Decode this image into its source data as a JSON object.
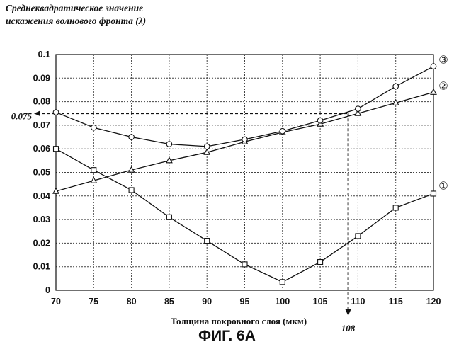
{
  "chart_data": {
    "type": "line",
    "title": "",
    "ylabel_line1": "Среднеквадратическое значение",
    "ylabel_line2": "искажения волнового фронта (λ)",
    "xlabel": "Толщина покровного слоя (мкм)",
    "caption": "ФИГ. 6А",
    "x": [
      70,
      75,
      80,
      85,
      90,
      95,
      100,
      105,
      110,
      115,
      120
    ],
    "xticks": [
      "70",
      "75",
      "80",
      "85",
      "90",
      "95",
      "100",
      "105",
      "110",
      "115",
      "120"
    ],
    "yticks": [
      "0",
      "0.01",
      "0.02",
      "0.03",
      "0.04",
      "0.05",
      "0.06",
      "0.07",
      "0.08",
      "0.09",
      "0.1"
    ],
    "xlim": [
      70,
      120
    ],
    "ylim": [
      0,
      0.1
    ],
    "grid": "dotted",
    "series": [
      {
        "label": "①",
        "marker": "square",
        "values": [
          0.06,
          0.051,
          0.0425,
          0.031,
          0.021,
          0.011,
          0.0035,
          0.012,
          0.023,
          0.035,
          0.041
        ]
      },
      {
        "label": "②",
        "marker": "triangle",
        "values": [
          0.042,
          0.0465,
          0.051,
          0.055,
          0.0585,
          0.063,
          0.067,
          0.0705,
          0.075,
          0.0795,
          0.084
        ]
      },
      {
        "label": "③",
        "marker": "circle",
        "values": [
          0.0755,
          0.069,
          0.065,
          0.062,
          0.061,
          0.064,
          0.0675,
          0.072,
          0.077,
          0.0865,
          0.095
        ]
      }
    ],
    "annotations": {
      "y_value": 0.075,
      "y_text": "0.075",
      "x_value": 108.7,
      "x_text": "108"
    }
  }
}
